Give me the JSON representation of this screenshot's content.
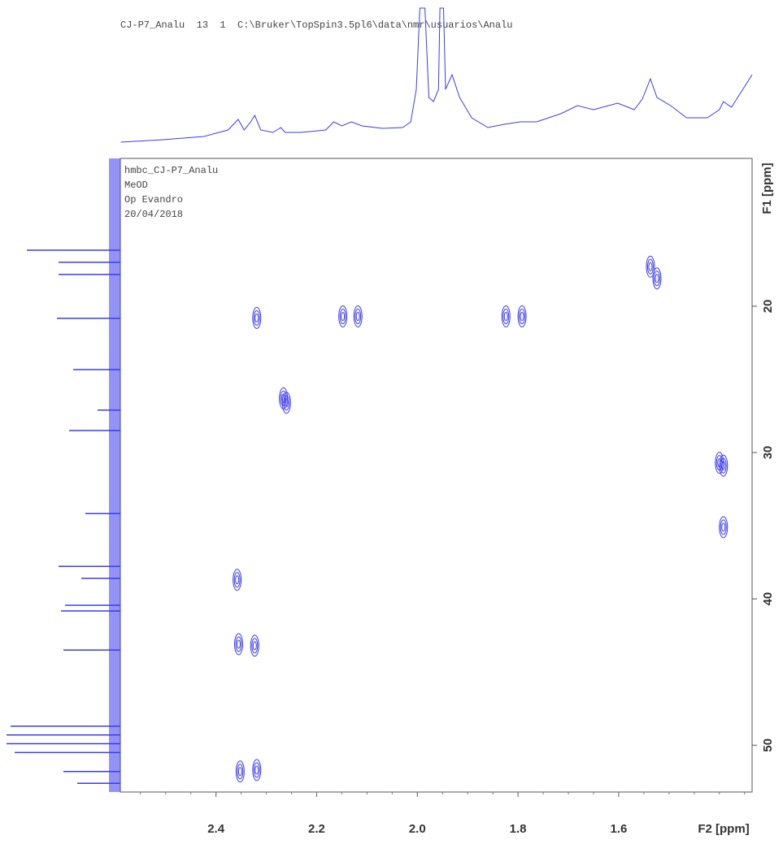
{
  "chart_data": {
    "type": "contour",
    "title": "CJ-P7_Analu  13  1  C:\\Bruker\\TopSpin3.5pl6\\data\\nmr\\usuarios\\Analu",
    "info": [
      "hmbc_CJ-P7_Analu",
      "MeOD",
      "Op Evandro",
      "20/04/2018"
    ],
    "xlabel": "F2 [ppm]",
    "ylabel": "F1 [ppm]",
    "xlim": [
      2.59,
      1.335
    ],
    "ylim": [
      9.9,
      53.2
    ],
    "xticks": [
      2.4,
      2.2,
      {
        "value": 2,
        "label": "2.0"
      },
      1.8,
      1.6
    ],
    "yticks": [
      20,
      30,
      40,
      50
    ],
    "color": "#3b3bf0",
    "peaks": {
      "x": [
        1.537,
        1.524,
        2.319,
        2.148,
        2.118,
        1.824,
        1.792,
        2.266,
        2.26,
        1.4,
        1.392,
        1.392,
        2.358,
        2.355,
        2.323,
        2.352,
        2.319
      ],
      "y": [
        17.3,
        18.1,
        20.8,
        20.7,
        20.7,
        20.7,
        20.7,
        26.3,
        26.6,
        30.7,
        30.9,
        35.1,
        38.7,
        43.1,
        43.2,
        51.8,
        51.7
      ]
    },
    "projection_top": {
      "x": [
        2.589,
        2.505,
        2.424,
        2.376,
        2.356,
        2.344,
        2.331,
        2.323,
        2.311,
        2.287,
        2.271,
        2.263,
        2.231,
        2.182,
        2.166,
        2.15,
        2.131,
        2.11,
        2.069,
        2.029,
        2.013,
        2.002,
        1.995,
        1.985,
        1.977,
        1.968,
        1.958,
        1.955,
        1.948,
        1.944,
        1.931,
        1.916,
        1.892,
        1.86,
        1.827,
        1.795,
        1.763,
        1.715,
        1.682,
        1.65,
        1.602,
        1.569,
        1.553,
        1.537,
        1.524,
        1.497,
        1.465,
        1.424,
        1.4,
        1.392,
        1.376,
        1.335
      ],
      "values": [
        5,
        8,
        12,
        20,
        33,
        20,
        30,
        38,
        20,
        17,
        23,
        17,
        17,
        20,
        30,
        25,
        30,
        25,
        22,
        23,
        30,
        70,
        170,
        170,
        60,
        55,
        70,
        170,
        170,
        70,
        88,
        60,
        35,
        23,
        27,
        30,
        30,
        40,
        50,
        45,
        53,
        45,
        58,
        83,
        60,
        50,
        35,
        35,
        45,
        55,
        48,
        88
      ]
    },
    "projection_left": {
      "y": [
        16.17,
        17.0,
        17.83,
        20.83,
        24.33,
        27.1,
        28.5,
        34.17,
        37.78,
        38.6,
        40.44,
        40.83,
        43.5,
        48.7,
        49.3,
        49.9,
        50.5,
        51.8,
        52.6
      ],
      "values": [
        115,
        76,
        76,
        78,
        58,
        28,
        63,
        43,
        76,
        48,
        68,
        73,
        70,
        135,
        140,
        140,
        130,
        70,
        53
      ]
    }
  }
}
